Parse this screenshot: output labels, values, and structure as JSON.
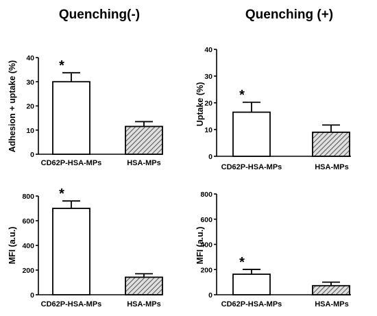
{
  "column_titles": [
    "Quenching(-)",
    "Quenching (+)"
  ],
  "colors": {
    "bar_outline": "#000000",
    "hatch": "#5a5a5a",
    "bar_fill": "#ffffff",
    "hatch_background": "#e0e0e0"
  },
  "chart_data": [
    {
      "type": "bar",
      "title": "",
      "xlabel": "",
      "ylabel": "Adhesion + uptake (%)",
      "categories": [
        "CD62P-HSA-MPs",
        "HSA-MPs"
      ],
      "values": [
        30,
        11.5
      ],
      "errors": [
        3.7,
        2.0
      ],
      "significance": [
        "*",
        ""
      ],
      "ylim": [
        0,
        40
      ],
      "yticks": [
        0,
        10,
        20,
        30,
        40
      ],
      "fills": [
        "white",
        "hatch"
      ]
    },
    {
      "type": "bar",
      "title": "",
      "xlabel": "",
      "ylabel": "Uptake (%)",
      "categories": [
        "CD62P-HSA-MPs",
        "HSA-MPs"
      ],
      "values": [
        16.5,
        9
      ],
      "errors": [
        3.7,
        2.7
      ],
      "significance": [
        "*",
        ""
      ],
      "ylim": [
        0,
        40
      ],
      "yticks": [
        0,
        10,
        20,
        30,
        40
      ],
      "fills": [
        "white",
        "hatch"
      ]
    },
    {
      "type": "bar",
      "title": "",
      "xlabel": "",
      "ylabel": "MFI (a.u.)",
      "categories": [
        "CD62P-HSA-MPs",
        "HSA-MPs"
      ],
      "values": [
        700,
        142
      ],
      "errors": [
        60,
        28
      ],
      "significance": [
        "*",
        ""
      ],
      "ylim": [
        0,
        800
      ],
      "yticks": [
        0,
        200,
        400,
        600,
        800
      ],
      "fills": [
        "white",
        "hatch"
      ]
    },
    {
      "type": "bar",
      "title": "",
      "xlabel": "",
      "ylabel": "MFI (a.u.)",
      "categories": [
        "CD62P-HSA-MPs",
        "HSA-MPs"
      ],
      "values": [
        163,
        72
      ],
      "errors": [
        38,
        28
      ],
      "significance": [
        "*",
        ""
      ],
      "ylim": [
        0,
        800
      ],
      "yticks": [
        0,
        200,
        400,
        600,
        800
      ],
      "fills": [
        "white",
        "hatch"
      ]
    }
  ]
}
